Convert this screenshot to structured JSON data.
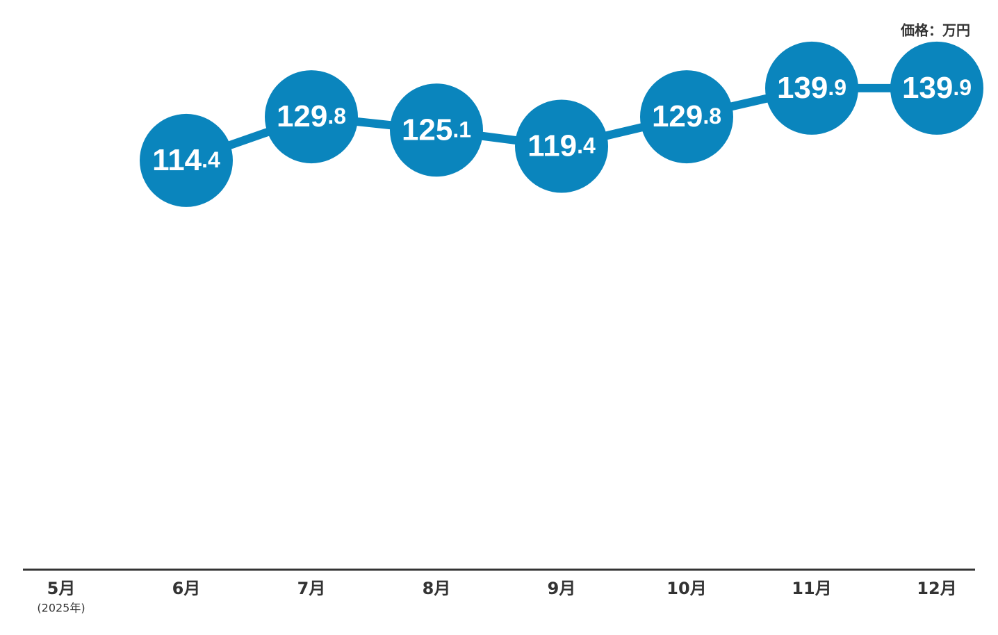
{
  "chart_data": {
    "type": "line",
    "unit_label": "価格：万円",
    "categories": [
      "5月",
      "6月",
      "7月",
      "8月",
      "9月",
      "10月",
      "11月",
      "12月"
    ],
    "x_note": "(2025年)",
    "values": [
      null,
      114.4,
      129.8,
      125.1,
      119.4,
      129.8,
      139.9,
      139.9
    ],
    "color": "#0a85bd",
    "ylim": [
      -30,
      171
    ],
    "grid": false
  }
}
